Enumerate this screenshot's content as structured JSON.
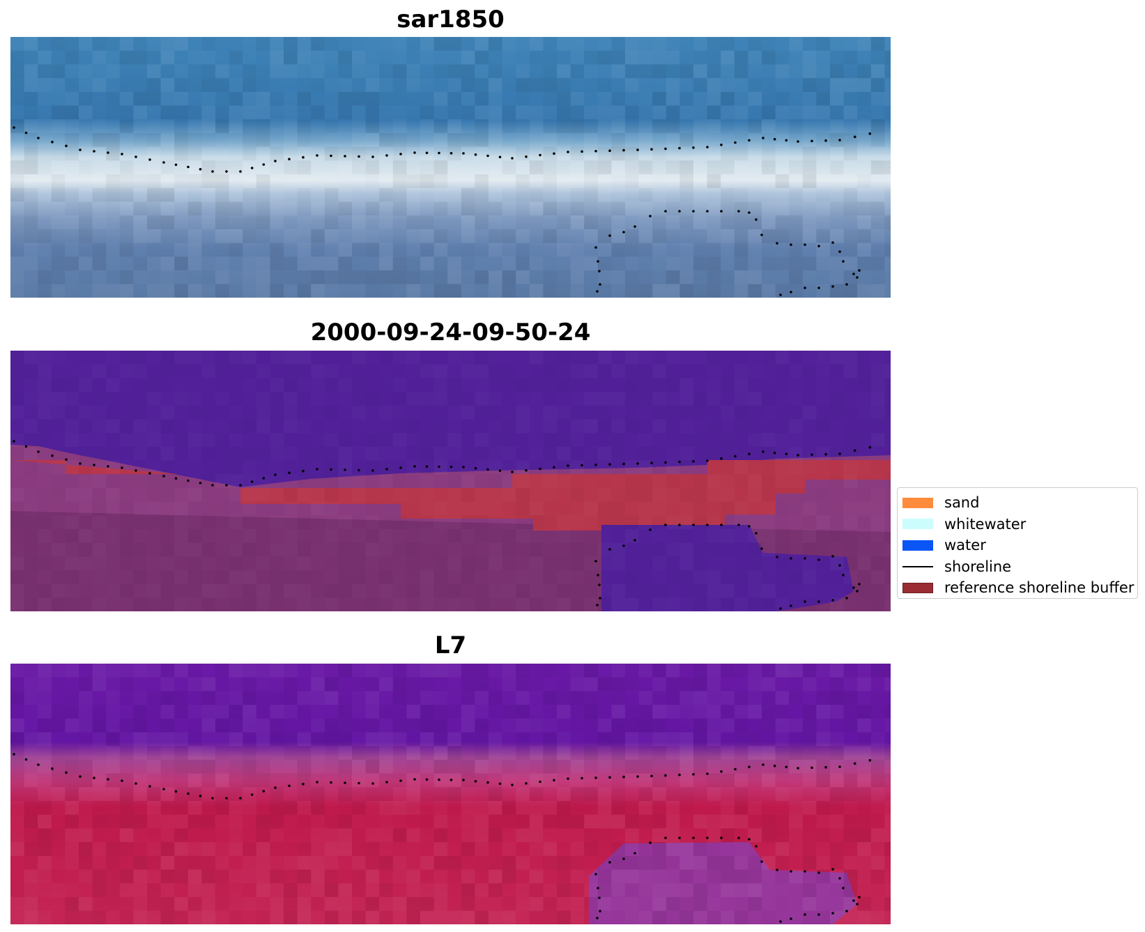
{
  "panels": [
    {
      "title": "sar1850"
    },
    {
      "title": "2000-09-24-09-50-24"
    },
    {
      "title": "L7"
    }
  ],
  "legend": {
    "items": [
      {
        "label": "sand",
        "color": "#ff8c3c",
        "kind": "patch"
      },
      {
        "label": "whitewater",
        "color": "#ccfdfd",
        "kind": "patch"
      },
      {
        "label": "water",
        "color": "#0a55f5",
        "kind": "patch"
      },
      {
        "label": "shoreline",
        "color": "#000000",
        "kind": "line"
      },
      {
        "label": "reference shoreline buffer",
        "color": "#9b2c33",
        "kind": "patch"
      }
    ]
  },
  "colors": {
    "water_class": "#52219a",
    "buffer": "#b7364b",
    "rgb_sea": "#3b7bb1",
    "rgb_surf": "#d6e4ef",
    "falsecolor_sea": "#6614a4",
    "falsecolor_land": "#c41445"
  }
}
